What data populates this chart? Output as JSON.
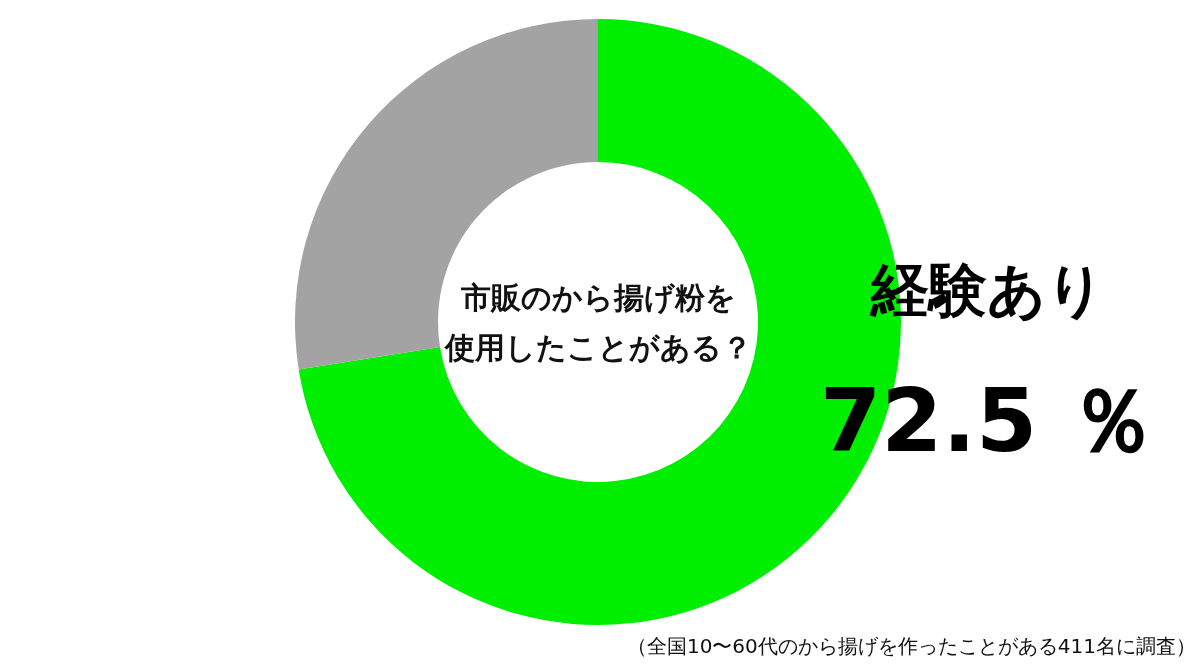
{
  "chart_data": {
    "type": "donut",
    "title": "市販のから揚げ粉を使用したことがある？",
    "categories": [
      "経験あり",
      null
    ],
    "values": [
      72.5,
      27.5
    ],
    "colors": [
      "#00ee00",
      "#a3a3a3"
    ],
    "value_labels": [
      "72.5 ％",
      null
    ],
    "annotations": [
      "（全国10〜60代のから揚げを作ったことがある411名に調査）"
    ]
  }
}
